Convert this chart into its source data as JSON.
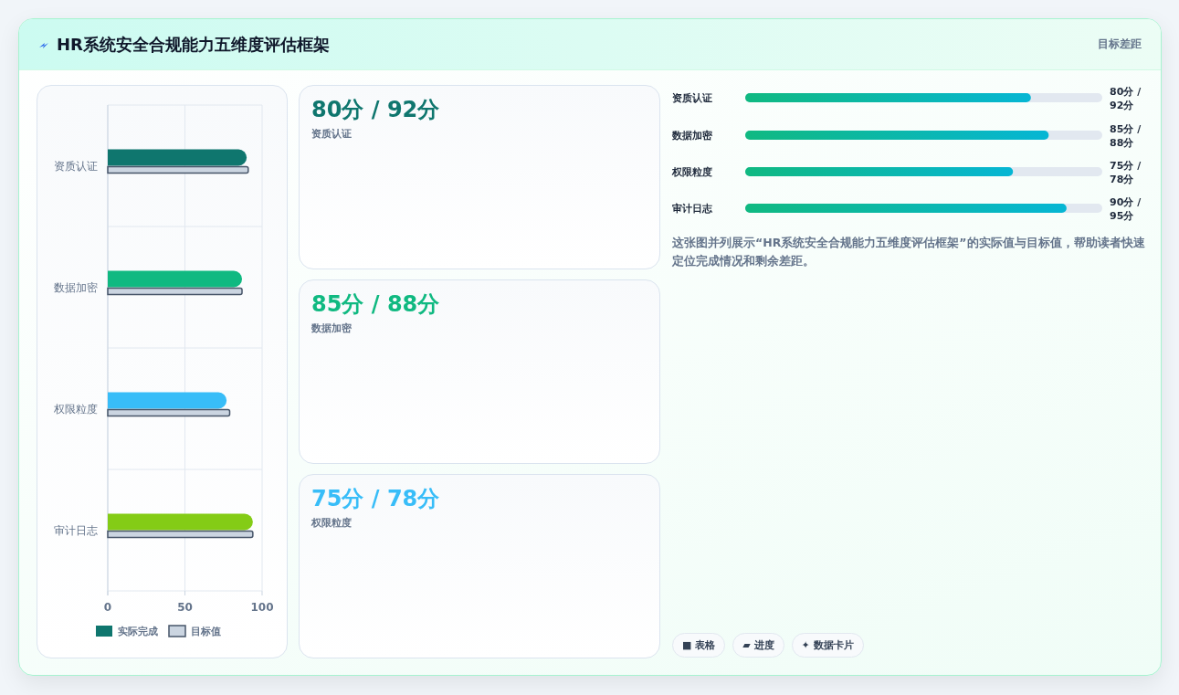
{
  "chart_data": [
    {
      "type": "other",
      "title": "HR系统安全合规能力五维度评估框架",
      "subtitle": "目标差距"
    },
    {
      "type": "bar",
      "orientation": "horizontal",
      "categories": [
        "资质认证",
        "数据加密",
        "权限粒度",
        "审计日志"
      ],
      "series": [
        {
          "name": "实际完成",
          "color": "#0f766e",
          "colors": [
            "#0f766e",
            "#10b981",
            "#38bdf8",
            "#84cc16"
          ],
          "values": [
            90,
            87,
            77,
            94
          ]
        },
        {
          "name": "目标值",
          "color": "#cbd5e1",
          "values": [
            91,
            87,
            79,
            94
          ]
        }
      ],
      "xlim": [
        0,
        100
      ],
      "xticks": [
        0,
        50,
        100
      ],
      "grid": true,
      "legend": "bottom"
    },
    {
      "type": "other",
      "categories": [
        "资质认证",
        "数据加密",
        "权限粒度"
      ],
      "annotations": [
        "80分 / 92分",
        "85分 / 88分",
        "75分 / 78分"
      ]
    },
    {
      "type": "bar",
      "orientation": "horizontal",
      "xlim": [
        0,
        100
      ],
      "categories": [
        "资质认证",
        "数据加密",
        "权限粒度",
        "审计日志"
      ],
      "series": [
        {
          "color": "#10b981",
          "values": [
            80,
            85,
            75,
            90
          ],
          "value_labels": [
            "80分 / 92分",
            "85分 / 88分",
            "75分 / 78分",
            "90分 / 95分"
          ]
        }
      ],
      "annotations": [
        "这张图并列展示“HR系统安全合规能力五维度评估框架”的实际值与目标值，帮助读者快速定位完成情况和剩余差距。",
        "■ 表格",
        "▰ 进度",
        "✦ 数据卡片"
      ]
    }
  ]
}
